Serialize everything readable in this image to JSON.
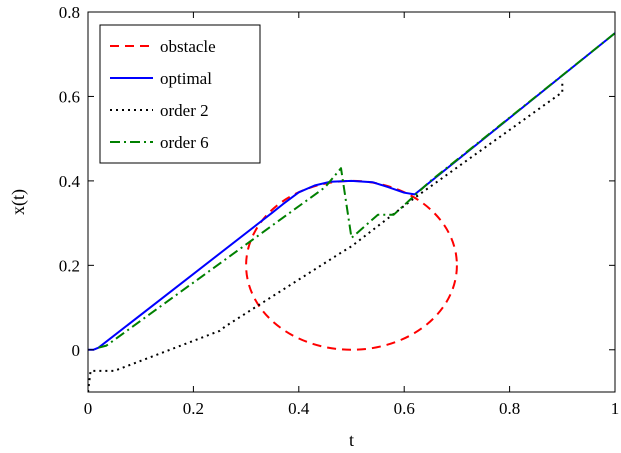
{
  "chart_data": {
    "type": "line",
    "title": "",
    "xlabel": "t",
    "ylabel": "x(t)",
    "xlim": [
      0,
      1
    ],
    "ylim": [
      -0.1,
      0.8
    ],
    "xticks": [
      "0",
      "0.2",
      "0.4",
      "0.6",
      "0.8",
      "1"
    ],
    "yticks": [
      "0",
      "0.2",
      "0.4",
      "0.6",
      "0.8"
    ],
    "xtick_values": [
      0,
      0.2,
      0.4,
      0.6,
      0.8,
      1
    ],
    "ytick_values": [
      0,
      0.2,
      0.4,
      0.6,
      0.8
    ],
    "grid": false,
    "legend_position": "top-left",
    "series": [
      {
        "name": "obstacle",
        "color": "#ff0000",
        "style": "dashed",
        "shape": "ellipse",
        "center": [
          0.5,
          0.2
        ],
        "radius": [
          0.2,
          0.2
        ]
      },
      {
        "name": "optimal",
        "color": "#0000ff",
        "style": "solid",
        "x": [
          0,
          0.01,
          0.02,
          0.35,
          0.37,
          0.4,
          0.43,
          0.46,
          0.5,
          0.54,
          0.57,
          0.6,
          0.62,
          1.0
        ],
        "y": [
          0,
          0,
          0.005,
          0.325,
          0.345,
          0.373,
          0.389,
          0.398,
          0.4,
          0.397,
          0.385,
          0.372,
          0.368,
          0.75
        ]
      },
      {
        "name": "order 2",
        "color": "#000000",
        "style": "dotted",
        "x": [
          0,
          0.005,
          0.05,
          0.25,
          0.26,
          0.48,
          0.5,
          0.62,
          0.9,
          0.9
        ],
        "y": [
          -0.1,
          -0.05,
          -0.05,
          0.045,
          0.055,
          0.23,
          0.245,
          0.36,
          0.61,
          0.64
        ]
      },
      {
        "name": "order 6",
        "color": "#008000",
        "style": "dashdot",
        "x": [
          0.02,
          0.035,
          0.45,
          0.48,
          0.5,
          0.55,
          0.58,
          0.65,
          1.0
        ],
        "y": [
          0.005,
          0.01,
          0.385,
          0.43,
          0.265,
          0.32,
          0.32,
          0.4,
          0.75
        ]
      }
    ]
  }
}
